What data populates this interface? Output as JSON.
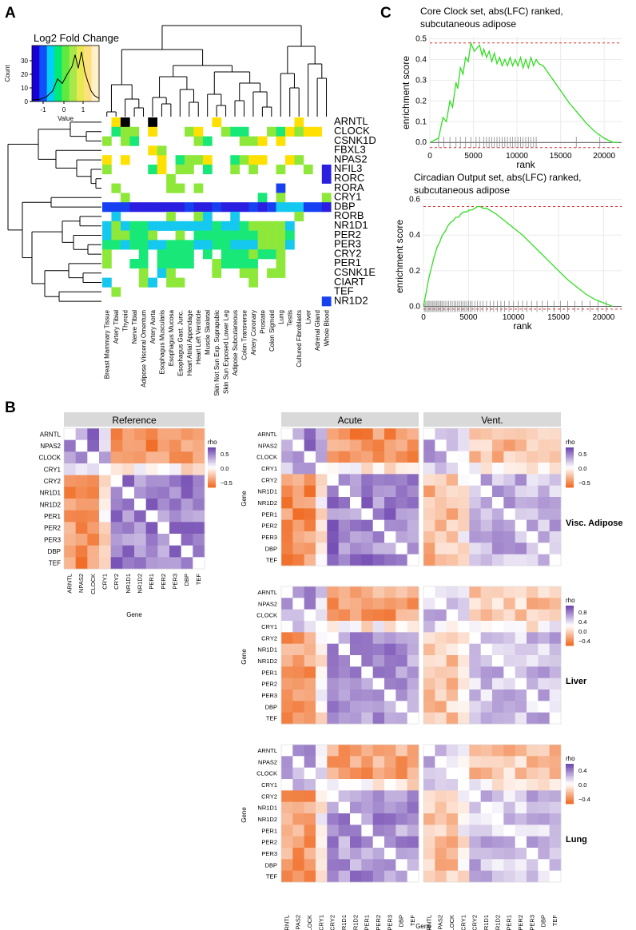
{
  "panel_labels": {
    "a": "A",
    "b": "B",
    "c": "C"
  },
  "chart_data": [
    {
      "id": "panelA",
      "type": "heatmap",
      "title": "",
      "legend": {
        "title": "Log2 Fold Change",
        "xlabel": "Value",
        "ylabel": "Count",
        "ticks": [
          "-1",
          "0",
          "1"
        ],
        "yticks": [
          "0",
          "10",
          "20",
          "30"
        ]
      },
      "genes": [
        "ARNTL",
        "CLOCK",
        "CSNK1D",
        "FBXL3",
        "NPAS2",
        "NFIL3",
        "RORC",
        "RORA",
        "CRY1",
        "DBP",
        "RORB",
        "NR1D1",
        "PER2",
        "PER3",
        "CRY2",
        "PER1",
        "CSNK1E",
        "CIART",
        "TEF",
        "NR1D2"
      ],
      "tissues": [
        "Breast Mammary Tissue",
        "Artery Tibial",
        "Thyroid",
        "Nerve Tibial",
        "Adipose Visceral Omentum",
        "Artery Aorta",
        "Esophagus Muscularis",
        "Esophagus Mucosa",
        "Esophagus Gast. Junc.",
        "Heart Atrial Appendage",
        "Heart Left Ventricle",
        "Muscle Skeletal",
        "Skin Not Sun Exp. Suprapubic",
        "Skin Sun Exposed Lower Leg",
        "Adipose Subcutaneous",
        "Colon Transverse",
        "Artery Coronary",
        "Prostate",
        "Colon Sigmoid",
        "Lung",
        "Testis",
        "Cultured Fibroblasts",
        "Liver",
        "Adrenal Gland",
        "Whole Blood"
      ],
      "rows": [
        "6786686666667666666667666",
        "6455676665766544665475776",
        "5654666666546665576766666",
        "6666675666666666666666666",
        "7676667645576645776675666",
        "5666647655646656566566561",
        "6666666566666666666666661",
        "6566666556566666666266666",
        "6656666666666666646566665",
        "2221111112112111212333221",
        "6366666566536636666665666",
        "3534433333334334555536666",
        "3554456656444444455546666",
        "4434433444334433355536666",
        "5666464444646444544566666",
        "5664464444665444466566666",
        "6666563566665665565566666",
        "3666536556666666566666666",
        "6566666666666666666666666",
        "6666666666666666666666662"
      ]
    },
    {
      "id": "panelB",
      "type": "heatmap",
      "genes": [
        "ARNTL",
        "NPAS2",
        "CLOCK",
        "CRY1",
        "CRY2",
        "NR1D1",
        "NR1D2",
        "PER1",
        "PER2",
        "PER3",
        "DBP",
        "TEF"
      ],
      "x_label": "Gene",
      "y_label": "Gene",
      "facets": [
        {
          "name": "Reference",
          "group": ""
        },
        {
          "name": "Acute",
          "group": "Acute"
        },
        {
          "name": "Vent.",
          "group": "Vent."
        }
      ],
      "tissues": [
        {
          "name": "Visc. Adipose",
          "legend_title": "rho",
          "legend_ticks": [
            "0.5",
            "0.0",
            "−0.5"
          ]
        },
        {
          "name": "Liver",
          "legend_title": "rho",
          "legend_ticks": [
            "0.8",
            "0.4",
            "0.0",
            "−0.4"
          ]
        },
        {
          "name": "Lung",
          "legend_title": "rho",
          "legend_ticks": [
            "0.4",
            "0.0",
            "−0.4"
          ]
        }
      ],
      "reference": {
        "legend_title": "rho",
        "legend_ticks": [
          "0.5",
          "0.0",
          "−0.5"
        ]
      },
      "correlation_blocks": {
        "activators": [
          "ARNTL",
          "NPAS2",
          "CLOCK"
        ],
        "repressors": [
          "CRY2",
          "NR1D1",
          "NR1D2",
          "PER1",
          "PER2",
          "PER3",
          "DBP",
          "TEF"
        ],
        "within_group_rho": 0.55,
        "between_group_rho": -0.6
      }
    },
    {
      "id": "panelC1",
      "type": "line",
      "title": "Core Clock set, abs(LFC) ranked, subcutaneous adipose",
      "xlabel": "rank",
      "ylabel": "enrichment score",
      "xlim": [
        0,
        22000
      ],
      "ylim": [
        -0.03,
        0.51
      ],
      "xticks": [
        0,
        5000,
        10000,
        15000,
        20000
      ],
      "yticks": [
        0.0,
        0.1,
        0.2,
        0.3,
        0.4,
        0.5
      ],
      "max_es": 0.48,
      "x": [
        0,
        1000,
        1500,
        1900,
        2300,
        2600,
        3000,
        3200,
        3500,
        3800,
        4100,
        4400,
        4700,
        5100,
        5300,
        5700,
        6000,
        6200,
        6500,
        6800,
        7100,
        7400,
        7700,
        8000,
        8300,
        8600,
        8900,
        9200,
        9500,
        9800,
        10100,
        10400,
        10700,
        11000,
        11300,
        11600,
        11900,
        12200,
        12500,
        13000,
        14000,
        15000,
        16000,
        17000,
        18000,
        19000,
        20000,
        21000,
        21500
      ],
      "y": [
        0,
        0.02,
        0.12,
        0.1,
        0.2,
        0.17,
        0.29,
        0.26,
        0.36,
        0.33,
        0.41,
        0.39,
        0.48,
        0.44,
        0.45,
        0.47,
        0.42,
        0.45,
        0.41,
        0.44,
        0.39,
        0.43,
        0.38,
        0.41,
        0.37,
        0.4,
        0.37,
        0.41,
        0.37,
        0.4,
        0.37,
        0.41,
        0.36,
        0.4,
        0.36,
        0.41,
        0.37,
        0.4,
        0.38,
        0.37,
        0.31,
        0.25,
        0.19,
        0.14,
        0.09,
        0.05,
        0.02,
        0.0,
        0.0
      ],
      "hits": [
        1000,
        1600,
        2300,
        3000,
        3500,
        4100,
        4700,
        5300,
        5700,
        6200,
        6500,
        6800,
        7100,
        7400,
        7700,
        8000,
        8300,
        8600,
        8900,
        9200,
        9500,
        9800,
        10100,
        10400,
        10700,
        11000,
        11300,
        11600,
        11900,
        12200,
        16800,
        19500
      ]
    },
    {
      "id": "panelC2",
      "type": "line",
      "title": "Circadian Output set, abs(LFC) ranked, subcutaneous adipose",
      "xlabel": "rank",
      "ylabel": "enrichment score",
      "xlim": [
        0,
        22000
      ],
      "ylim": [
        -0.02,
        0.58
      ],
      "xticks": [
        0,
        5000,
        10000,
        15000,
        20000
      ],
      "yticks": [
        0.0,
        0.2,
        0.4,
        0.6
      ],
      "max_es": 0.56,
      "x": [
        0,
        300,
        600,
        900,
        1200,
        1500,
        1800,
        2100,
        2400,
        2700,
        3000,
        3300,
        3600,
        3900,
        4200,
        4500,
        4800,
        5100,
        5400,
        5700,
        6000,
        6300,
        6600,
        7000,
        8000,
        9000,
        10000,
        11000,
        12000,
        13000,
        14000,
        15000,
        16000,
        17000,
        18000,
        19000,
        20000,
        20500,
        21000
      ],
      "y": [
        0,
        0.08,
        0.16,
        0.22,
        0.28,
        0.33,
        0.36,
        0.4,
        0.42,
        0.45,
        0.47,
        0.48,
        0.5,
        0.5,
        0.52,
        0.53,
        0.53,
        0.54,
        0.54,
        0.55,
        0.56,
        0.56,
        0.55,
        0.55,
        0.52,
        0.48,
        0.44,
        0.4,
        0.35,
        0.3,
        0.25,
        0.2,
        0.15,
        0.11,
        0.07,
        0.04,
        0.02,
        0.01,
        0.0
      ],
      "hits": [
        100,
        250,
        400,
        550,
        700,
        850,
        1000,
        1150,
        1300,
        1450,
        1600,
        1750,
        1900,
        2050,
        2200,
        2400,
        2600,
        2800,
        3000,
        3200,
        3400,
        3600,
        3800,
        4000,
        4200,
        4400,
        4600,
        4800,
        5000,
        5200,
        5400,
        5700,
        6000,
        6300,
        6600,
        7000,
        7400,
        7800,
        8200,
        8600,
        9000,
        9500,
        10000,
        10500,
        11000,
        11500,
        12000,
        12600,
        13200,
        13800,
        14500,
        15200,
        16000,
        16800,
        17600,
        18500,
        19400,
        20300
      ]
    }
  ]
}
